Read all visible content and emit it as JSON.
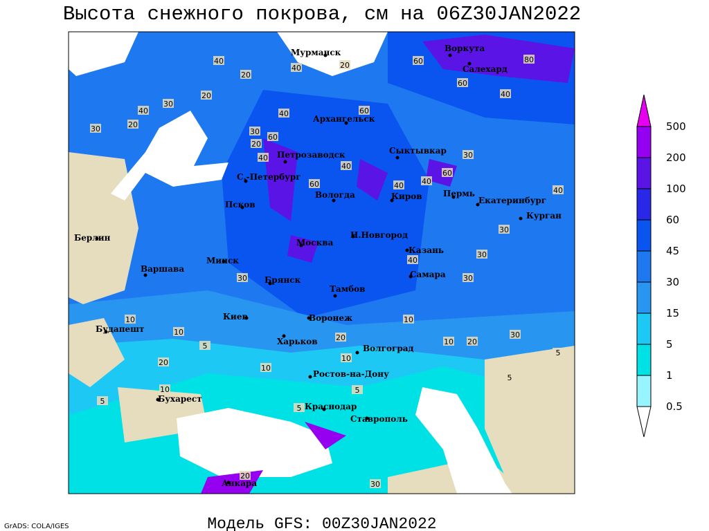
{
  "title": "Высота снежного покрова, см на 06Z30JAN2022",
  "footer": {
    "credit": "GrADS: COLA/IGES",
    "model": "Модель GFS: 00Z30JAN2022"
  },
  "map": {
    "cities": [
      "Мурманск",
      "Воркута",
      "Салехард",
      "Архангельск",
      "Сыктывкар",
      "Петрозаводск",
      "С.-Петербург",
      "Вологда",
      "Киров",
      "Пермь",
      "Екатеринбург",
      "Курган",
      "Псков",
      "Берлин",
      "Варшава",
      "Минск",
      "Москва",
      "Н.Новгород",
      "Казань",
      "Самара",
      "Брянск",
      "Тамбов",
      "Киев",
      "Воронеж",
      "Будапешт",
      "Харьков",
      "Волгоград",
      "Ростов-на-Дону",
      "Бухарест",
      "Краснодар",
      "Ставрополь",
      "Анкара"
    ],
    "contour_labels": [
      "40",
      "20",
      "40",
      "20",
      "60",
      "80",
      "60",
      "40",
      "60",
      "40",
      "30",
      "20",
      "40",
      "20",
      "30",
      "30",
      "20",
      "60",
      "40",
      "60",
      "40",
      "40",
      "60",
      "30",
      "40",
      "30",
      "40",
      "30",
      "30",
      "40",
      "30",
      "10",
      "20",
      "30",
      "10",
      "10",
      "20",
      "10",
      "5",
      "5",
      "20",
      "10",
      "10",
      "5",
      "10",
      "5",
      "5",
      "20",
      "30",
      "5"
    ]
  },
  "legend": {
    "levels": [
      0.5,
      1,
      5,
      15,
      30,
      45,
      60,
      100,
      200,
      500
    ],
    "colors": [
      "#ffffff",
      "#96f5ff",
      "#00e1e6",
      "#1ec8f5",
      "#2896f0",
      "#1e78f0",
      "#0a55f0",
      "#2828e6",
      "#5a14e6",
      "#9600f0",
      "#e600f0"
    ]
  }
}
